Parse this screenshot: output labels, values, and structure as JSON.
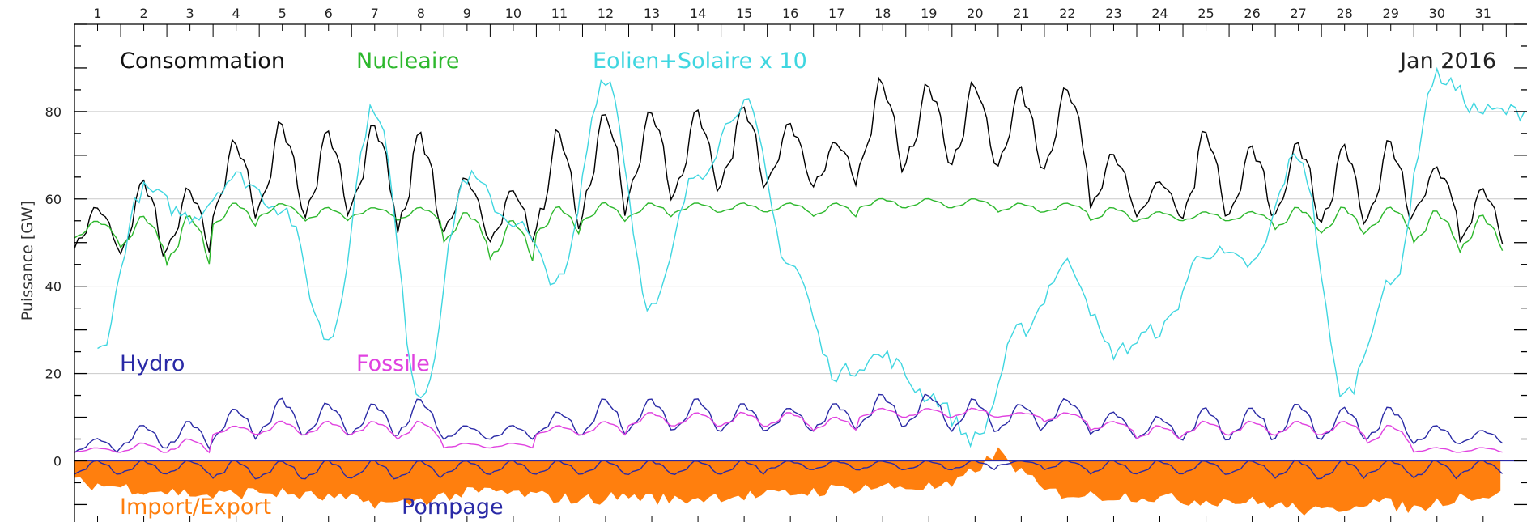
{
  "chart_data": {
    "type": "line",
    "title": "",
    "annotation": "Jan 2016",
    "xlabel": "",
    "ylabel": "Puissance [GW]",
    "ylim": [
      -14,
      100
    ],
    "yticks": [
      0,
      20,
      40,
      60,
      80
    ],
    "xlim": [
      0.5,
      31.95
    ],
    "day_ticks": [
      "1",
      "2",
      "3",
      "4",
      "5",
      "6",
      "7",
      "8",
      "9",
      "10",
      "11",
      "12",
      "13",
      "14",
      "15",
      "16",
      "17",
      "18",
      "19",
      "20",
      "21",
      "22",
      "23",
      "24",
      "25",
      "26",
      "27",
      "28",
      "29",
      "30",
      "31"
    ],
    "grid": "horizontal",
    "days": [
      1,
      2,
      3,
      4,
      5,
      6,
      7,
      8,
      9,
      10,
      11,
      12,
      13,
      14,
      15,
      16,
      17,
      18,
      19,
      20,
      21,
      22,
      23,
      24,
      25,
      26,
      27,
      28,
      29,
      30,
      31
    ],
    "series": [
      {
        "name": "Consommation",
        "color": "#000000",
        "kind": "daily-cycle",
        "daily_min": [
          49,
          47,
          48,
          56,
          58,
          56,
          58,
          53,
          52,
          50,
          53,
          57,
          60,
          61,
          63,
          64,
          63,
          67,
          68,
          68,
          68,
          67,
          58,
          56,
          56,
          56,
          56,
          54,
          55,
          57,
          50
        ],
        "daily_max": [
          58,
          64,
          62,
          73,
          77,
          75,
          77,
          75,
          65,
          62,
          75,
          80,
          80,
          80,
          81,
          77,
          73,
          87,
          86,
          86,
          85,
          85,
          70,
          64,
          75,
          72,
          73,
          72,
          73,
          67,
          62
        ]
      },
      {
        "name": "Nucleaire",
        "color": "#2db82d",
        "kind": "daily-cycle",
        "daily_min": [
          51,
          49,
          45,
          54,
          56,
          55,
          56,
          55,
          50,
          46,
          52,
          55,
          56,
          57,
          57,
          57,
          56,
          58,
          58,
          58,
          57,
          57,
          55,
          55,
          55,
          55,
          53,
          52,
          53,
          50,
          48
        ],
        "daily_max": [
          55,
          56,
          56,
          59,
          59,
          58,
          58,
          58,
          57,
          55,
          58,
          59,
          59,
          59,
          59,
          59,
          59,
          60,
          60,
          60,
          59,
          59,
          58,
          57,
          57,
          57,
          58,
          58,
          58,
          57,
          56
        ]
      },
      {
        "name": "Eolien+Solaire x 10",
        "color": "#3fd6e0",
        "kind": "smooth",
        "values": [
          25,
          62,
          56,
          65,
          58,
          28,
          81,
          15,
          65,
          55,
          41,
          88,
          35,
          66,
          82,
          45,
          20,
          24,
          15,
          5,
          30,
          45,
          25,
          30,
          48,
          45,
          70,
          15,
          40,
          88,
          80
        ]
      },
      {
        "name": "Hydro",
        "color": "#2a2aa6",
        "kind": "daily-cycle",
        "daily_min": [
          2,
          3,
          3,
          5,
          6,
          6,
          6,
          6,
          5,
          5,
          6,
          6,
          7,
          7,
          7,
          7,
          7,
          8,
          8,
          7,
          7,
          8,
          6,
          5,
          5,
          5,
          5,
          5,
          5,
          4,
          4
        ],
        "daily_max": [
          5,
          8,
          9,
          12,
          14,
          13,
          13,
          14,
          8,
          8,
          11,
          14,
          14,
          14,
          13,
          12,
          13,
          15,
          15,
          14,
          13,
          14,
          11,
          10,
          12,
          12,
          13,
          12,
          12,
          8,
          7
        ]
      },
      {
        "name": "Fossile",
        "color": "#e042e0",
        "kind": "daily-cycle",
        "daily_min": [
          2,
          2,
          2,
          6,
          6,
          6,
          6,
          5,
          3,
          3,
          6,
          6,
          8,
          8,
          8,
          8,
          7,
          10,
          10,
          10,
          10,
          9,
          7,
          5,
          6,
          6,
          6,
          6,
          4,
          2,
          2
        ],
        "daily_max": [
          3,
          4,
          5,
          8,
          9,
          9,
          9,
          9,
          4,
          4,
          8,
          9,
          11,
          11,
          11,
          11,
          10,
          12,
          12,
          12,
          11,
          11,
          9,
          8,
          9,
          9,
          9,
          9,
          8,
          3,
          3
        ]
      },
      {
        "name": "Import/Export",
        "color": "#ff7f0e",
        "kind": "filled-area",
        "values": [
          -5,
          -6,
          -7,
          -8,
          -7,
          -8,
          -9,
          -10,
          -8,
          -7,
          -8,
          -9,
          -8,
          -9,
          -8,
          -8,
          -7,
          -6,
          -6,
          -6,
          2,
          -7,
          -8,
          -8,
          -9,
          -9,
          -10,
          -12,
          -9,
          -11,
          -8
        ]
      },
      {
        "name": "Pompage",
        "color": "#2a2aa6",
        "kind": "daily-cycle",
        "daily_min": [
          -3,
          -3,
          -3,
          -4,
          -4,
          -4,
          -4,
          -4,
          -3,
          -3,
          -3,
          -3,
          -3,
          -3,
          -3,
          -2,
          -2,
          -2,
          -2,
          -2,
          -1,
          -2,
          -3,
          -3,
          -3,
          -3,
          -4,
          -4,
          -3,
          -4,
          -3
        ],
        "daily_max": [
          0,
          0,
          0,
          0,
          0,
          0,
          0,
          0,
          0,
          0,
          0,
          0,
          0,
          0,
          0,
          0,
          0,
          0,
          0,
          0,
          0,
          0,
          0,
          0,
          0,
          0,
          0,
          0,
          0,
          0,
          0
        ]
      }
    ]
  }
}
